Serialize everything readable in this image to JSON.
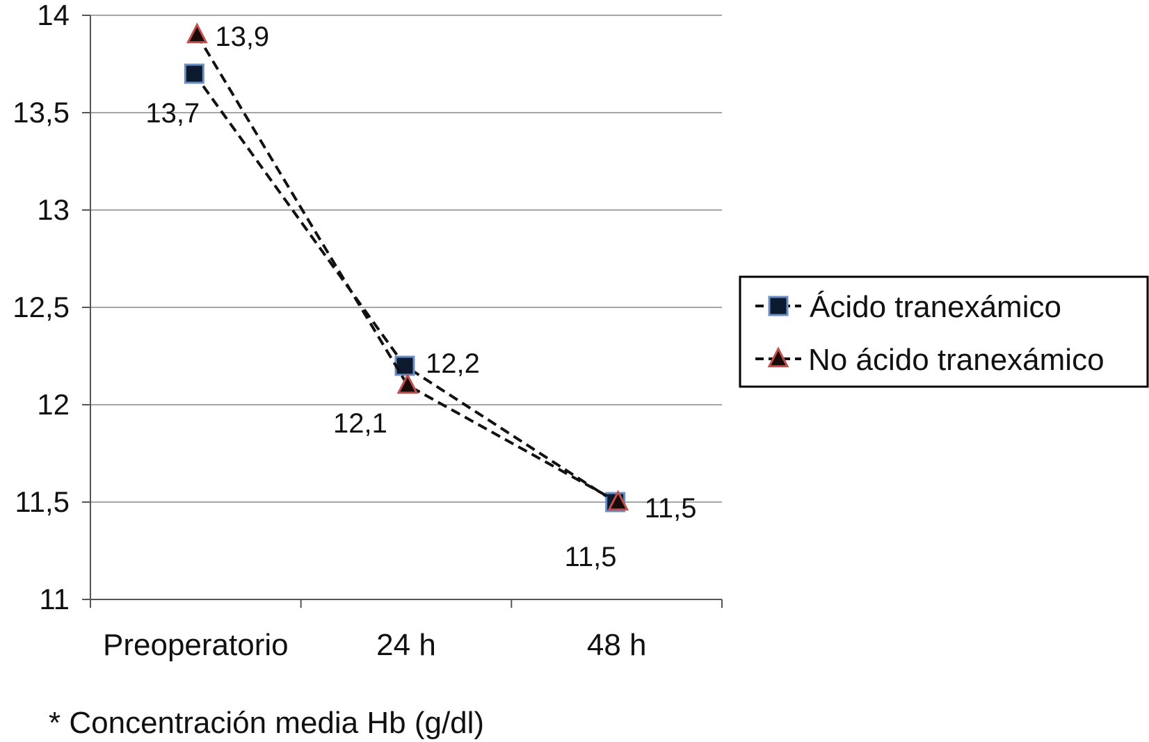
{
  "chart_data": {
    "type": "line",
    "title": "",
    "xlabel": "",
    "ylabel": "",
    "categories": [
      "Preoperatorio",
      "24 h",
      "48 h"
    ],
    "ylim": [
      11,
      14
    ],
    "yticks": [
      11,
      11.5,
      12,
      12.5,
      13,
      13.5,
      14
    ],
    "ytick_labels": [
      "11",
      "11,5",
      "12",
      "12,5",
      "13",
      "13,5",
      "14"
    ],
    "grid": true,
    "legend_position": "right",
    "footnote": "* Concentración media Hb (g/dl)",
    "series": [
      {
        "name": "Ácido tranexámico",
        "values": [
          13.7,
          12.2,
          11.5
        ],
        "labels": [
          "13,7",
          "12,2",
          "11,5"
        ],
        "marker": "square",
        "line_style": "dashed",
        "color": "#0b1a2e",
        "marker_edge": "#6b8fc4"
      },
      {
        "name": "No ácido tranexámico",
        "values": [
          13.9,
          12.1,
          11.5
        ],
        "labels": [
          "13,9",
          "12,1",
          "11,5"
        ],
        "marker": "triangle",
        "line_style": "dashed",
        "color": "#1a0a0a",
        "marker_edge": "#c0504d"
      }
    ]
  }
}
